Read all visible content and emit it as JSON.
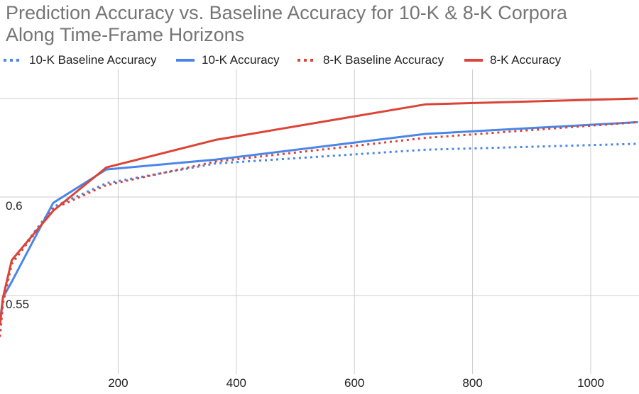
{
  "chart_data": {
    "type": "line",
    "title": "Prediction Accuracy vs. Baseline Accuracy for 10-K & 8-K Corpora Along Time-Frame Horizons",
    "title_lines": [
      "Prediction Accuracy vs. Baseline Accuracy for 10-K & 8-K Corpora",
      "Along Time-Frame Horizons"
    ],
    "xlabel": "",
    "ylabel": "",
    "xlim": [
      0,
      1080
    ],
    "ylim": [
      0.5,
      0.65
    ],
    "grid": true,
    "legend_position": "top",
    "x_ticks": [
      200,
      400,
      600,
      800,
      1000
    ],
    "x_tick_labels": [
      "200",
      "400",
      "600",
      "800",
      "1000"
    ],
    "y_ticks": [
      0.55,
      0.6
    ],
    "y_tick_labels": [
      "0.55",
      "0.6"
    ],
    "y_gridlines": [
      0.55,
      0.6,
      0.65
    ],
    "series": [
      {
        "name": "10-K Baseline Accuracy",
        "color": "#4a86e8",
        "style": "dotted",
        "x": [
          0,
          5,
          20,
          90,
          180,
          365,
          720,
          1080
        ],
        "y": [
          0.532,
          0.548,
          0.567,
          0.595,
          0.607,
          0.617,
          0.624,
          0.627
        ]
      },
      {
        "name": "10-K Accuracy",
        "color": "#4a86e8",
        "style": "solid",
        "x": [
          0,
          5,
          20,
          90,
          180,
          365,
          720,
          1080
        ],
        "y": [
          0.537,
          0.549,
          0.557,
          0.597,
          0.614,
          0.619,
          0.632,
          0.638
        ]
      },
      {
        "name": "8-K Baseline Accuracy",
        "color": "#db4437",
        "style": "dotted",
        "x": [
          0,
          5,
          20,
          90,
          180,
          365,
          720,
          1080
        ],
        "y": [
          0.529,
          0.546,
          0.566,
          0.594,
          0.606,
          0.618,
          0.63,
          0.638
        ]
      },
      {
        "name": "8-K Accuracy",
        "color": "#db4437",
        "style": "solid",
        "x": [
          0,
          5,
          20,
          90,
          180,
          365,
          720,
          1080
        ],
        "y": [
          0.535,
          0.549,
          0.568,
          0.593,
          0.615,
          0.629,
          0.647,
          0.65
        ]
      }
    ]
  }
}
